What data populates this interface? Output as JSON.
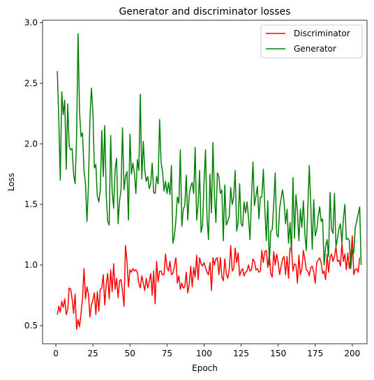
{
  "chart_data": {
    "type": "line",
    "title": "Generator and discriminator losses",
    "xlabel": "Epoch",
    "ylabel": "Loss",
    "xlim": [
      -8.95,
      209.95
    ],
    "ylim": [
      0.35,
      3.02
    ],
    "xticks": [
      0,
      25,
      50,
      75,
      100,
      125,
      150,
      175,
      200
    ],
    "yticks": [
      0.5,
      1.0,
      1.5,
      2.0,
      2.5,
      3.0
    ],
    "ytick_labels": [
      "0.5",
      "1.0",
      "1.5",
      "2.0",
      "2.5",
      "3.0"
    ],
    "xtick_labels": [
      "0",
      "25",
      "50",
      "75",
      "100",
      "125",
      "150",
      "175",
      "200"
    ],
    "grid": false,
    "legend_position": "top-right",
    "series": [
      {
        "name": "Discriminator",
        "color": "#ff0000",
        "values": [
          0.59,
          0.66,
          0.61,
          0.7,
          0.65,
          0.72,
          0.59,
          0.63,
          0.81,
          0.8,
          0.72,
          0.6,
          0.76,
          0.47,
          0.55,
          0.49,
          0.6,
          0.72,
          0.97,
          0.72,
          0.82,
          0.76,
          0.57,
          0.67,
          0.71,
          0.77,
          0.59,
          0.78,
          0.62,
          0.8,
          0.81,
          0.92,
          0.67,
          0.84,
          0.93,
          0.72,
          0.96,
          0.78,
          1.01,
          0.8,
          0.89,
          0.73,
          0.87,
          0.88,
          0.78,
          0.66,
          1.16,
          1.03,
          0.82,
          0.96,
          0.94,
          0.97,
          0.95,
          0.96,
          0.94,
          0.85,
          0.81,
          0.91,
          0.85,
          0.79,
          0.89,
          0.81,
          0.86,
          0.93,
          0.75,
          0.95,
          0.68,
          1.03,
          0.86,
          0.95,
          0.95,
          0.92,
          0.92,
          1.09,
          0.98,
          0.95,
          1.03,
          0.92,
          0.93,
          0.99,
          1.06,
          0.85,
          0.91,
          0.8,
          0.85,
          0.81,
          0.82,
          0.94,
          0.77,
          0.84,
          0.99,
          0.82,
          0.98,
          0.9,
          1.08,
          0.88,
          1.06,
          1.01,
          0.99,
          1.02,
          0.98,
          0.94,
          0.92,
          1.02,
          0.79,
          1.06,
          1.0,
          1.05,
          1.06,
          0.92,
          1.06,
          0.9,
          0.87,
          1.05,
          0.93,
          0.89,
          0.96,
          1.16,
          0.95,
          0.97,
          1.14,
          1.02,
          1.1,
          0.91,
          0.95,
          0.97,
          0.91,
          0.94,
          0.95,
          1.0,
          0.95,
          0.96,
          1.05,
          1.03,
          0.96,
          0.97,
          0.94,
          0.95,
          1.12,
          1.02,
          1.11,
          1.12,
          0.98,
          1.09,
          0.93,
          0.9,
          1.11,
          1.0,
          1.09,
          1.02,
          0.92,
          0.99,
          1.05,
          1.07,
          0.92,
          1.07,
          0.89,
          1.14,
          1.14,
          0.95,
          1.01,
          1.0,
          0.85,
          1.08,
          0.92,
          0.97,
          1.12,
          1.05,
          0.96,
          0.95,
          0.91,
          0.98,
          0.99,
          0.94,
          0.85,
          1.02,
          1.04,
          1.06,
          1.02,
          0.93,
          0.95,
          0.88,
          1.09,
          0.94,
          1.06,
          1.09,
          1.03,
          1.07,
          1.15,
          1.03,
          1.04,
          0.99,
          1.18,
          1.03,
          1.09,
          0.96,
          1.1,
          0.97,
          1.06,
          1.24,
          0.92,
          0.96,
          0.97,
          0.94,
          1.06
        ],
        "x_start": 1
      },
      {
        "name": "Generator",
        "color": "#008000",
        "values": [
          2.6,
          2.2,
          1.7,
          2.43,
          2.24,
          2.36,
          1.79,
          2.33,
          1.98,
          1.95,
          1.96,
          1.75,
          1.67,
          2.05,
          2.91,
          2.26,
          2.06,
          2.09,
          1.78,
          1.67,
          1.36,
          1.66,
          2.2,
          2.46,
          2.27,
          1.8,
          1.83,
          1.57,
          1.52,
          1.62,
          2.11,
          1.73,
          2.15,
          1.58,
          1.36,
          1.33,
          2.07,
          1.61,
          1.47,
          1.79,
          1.88,
          1.34,
          1.53,
          1.62,
          2.13,
          1.62,
          1.73,
          1.77,
          1.37,
          2.08,
          1.75,
          1.84,
          1.76,
          1.59,
          1.87,
          1.78,
          2.41,
          1.71,
          2.02,
          1.78,
          1.69,
          1.73,
          1.63,
          1.67,
          1.84,
          1.6,
          1.59,
          1.73,
          1.67,
          2.2,
          1.85,
          1.77,
          1.61,
          1.69,
          1.59,
          1.68,
          1.58,
          1.82,
          1.18,
          1.24,
          1.37,
          1.56,
          1.51,
          1.95,
          1.32,
          1.46,
          1.49,
          1.74,
          1.37,
          1.58,
          1.65,
          1.68,
          1.59,
          1.97,
          1.37,
          1.5,
          1.78,
          1.27,
          1.33,
          1.69,
          1.95,
          1.39,
          1.21,
          1.75,
          1.43,
          2.01,
          1.58,
          1.35,
          1.76,
          1.73,
          1.59,
          1.62,
          1.2,
          1.66,
          1.33,
          1.36,
          1.4,
          1.64,
          1.5,
          1.56,
          1.78,
          1.28,
          1.35,
          1.67,
          1.34,
          1.32,
          1.52,
          1.43,
          1.52,
          1.39,
          1.21,
          1.55,
          1.85,
          1.49,
          1.57,
          1.65,
          1.38,
          1.56,
          1.56,
          1.79,
          1.47,
          1.2,
          1.53,
          1.0,
          1.28,
          1.29,
          1.5,
          1.76,
          1.25,
          1.23,
          1.47,
          1.55,
          1.62,
          1.52,
          1.34,
          1.46,
          1.18,
          1.35,
          1.11,
          1.72,
          1.22,
          1.58,
          1.44,
          1.2,
          1.46,
          1.31,
          1.53,
          1.26,
          1.12,
          1.47,
          1.82,
          1.5,
          1.13,
          1.54,
          1.24,
          1.29,
          1.4,
          1.48,
          1.36,
          1.38,
          1.0,
          1.15,
          1.21,
          1.07,
          1.6,
          1.3,
          1.26,
          1.59,
          1.15,
          1.22,
          1.3,
          1.34,
          1.18,
          1.38,
          1.5,
          1.21,
          1.22,
          1.2,
          0.97,
          1.13,
          1.1,
          1.31,
          1.36,
          1.42,
          1.48,
          1.0
        ],
        "x_start": 1
      }
    ]
  }
}
